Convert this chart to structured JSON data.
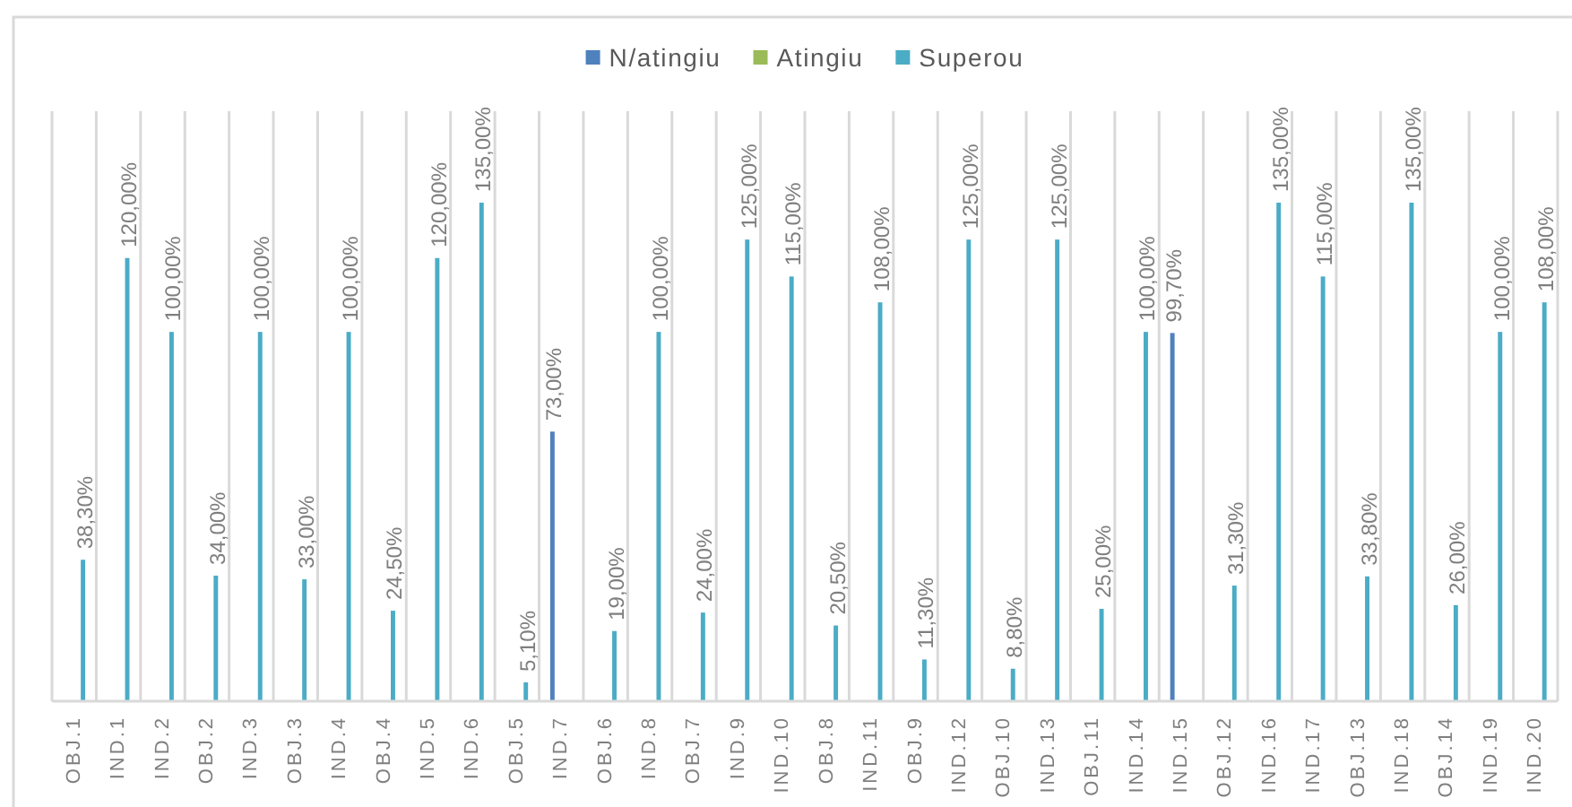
{
  "chart_data": {
    "type": "bar",
    "categories": [
      "OBJ.1",
      "IND.1",
      "IND.2",
      "OBJ.2",
      "IND.3",
      "OBJ.3",
      "IND.4",
      "OBJ.4",
      "IND.5",
      "IND.6",
      "OBJ.5",
      "IND.7",
      "OBJ.6",
      "IND.8",
      "OBJ.7",
      "IND.9",
      "IND.10",
      "OBJ.8",
      "IND.11",
      "OBJ.9",
      "IND.12",
      "OBJ.10",
      "IND.13",
      "OBJ.11",
      "IND.14",
      "IND.15",
      "OBJ.12",
      "IND.16",
      "IND.17",
      "OBJ.13",
      "IND.18",
      "OBJ.14",
      "IND.19",
      "IND.20"
    ],
    "series": [
      {
        "name": "N/atingiu",
        "color": "#4f81bd",
        "values": [
          null,
          null,
          null,
          null,
          null,
          null,
          null,
          null,
          null,
          null,
          null,
          73,
          null,
          null,
          null,
          null,
          null,
          null,
          null,
          null,
          null,
          null,
          null,
          null,
          null,
          99.7,
          null,
          null,
          null,
          null,
          null,
          null,
          null,
          null
        ],
        "value_labels": [
          null,
          null,
          null,
          null,
          null,
          null,
          null,
          null,
          null,
          null,
          null,
          "73,00%",
          null,
          null,
          null,
          null,
          null,
          null,
          null,
          null,
          null,
          null,
          null,
          null,
          null,
          "99,70%",
          null,
          null,
          null,
          null,
          null,
          null,
          null,
          null
        ]
      },
      {
        "name": "Atingiu",
        "color": "#9bbb59",
        "values": [
          null,
          null,
          null,
          null,
          null,
          null,
          null,
          null,
          null,
          null,
          null,
          null,
          null,
          null,
          null,
          null,
          null,
          null,
          null,
          null,
          null,
          null,
          null,
          null,
          null,
          null,
          null,
          null,
          null,
          null,
          null,
          null,
          null,
          null
        ]
      },
      {
        "name": "Superou",
        "color": "#4bacc6",
        "values": [
          38.3,
          120,
          100,
          34,
          100,
          33,
          100,
          24.5,
          120,
          135,
          5.1,
          null,
          19,
          100,
          24,
          125,
          115,
          20.5,
          108,
          11.3,
          125,
          8.8,
          125,
          25,
          100,
          null,
          31.3,
          135,
          115,
          33.8,
          135,
          26,
          100,
          108
        ],
        "value_labels": [
          "38,30%",
          "120,00%",
          "100,00%",
          "34,00%",
          "100,00%",
          "33,00%",
          "100,00%",
          "24,50%",
          "120,00%",
          "135,00%",
          "5,10%",
          null,
          "19,00%",
          "100,00%",
          "24,00%",
          "125,00%",
          "115,00%",
          "20,50%",
          "108,00%",
          "11,30%",
          "125,00%",
          "8,80%",
          "125,00%",
          "25,00%",
          "100,00%",
          null,
          "31,30%",
          "135,00%",
          "115,00%",
          "33,80%",
          "135,00%",
          "26,00%",
          "100,00%",
          "108,00%"
        ]
      }
    ],
    "legend": "top",
    "grid": "x",
    "tick_labels": "x"
  }
}
